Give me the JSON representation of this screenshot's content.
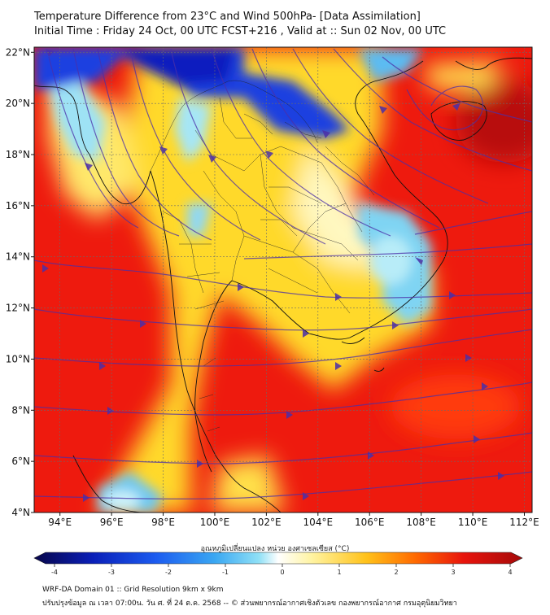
{
  "header": {
    "title_line1": "Temperature Difference from 23°C and Wind 500hPa- [Data Assimilation]",
    "title_line2": "Initial Time : Friday 24 Oct, 00 UTC FCST+216 , Valid at ::  Sun 02 Nov, 00 UTC"
  },
  "map": {
    "lon_ticks": [
      "94°E",
      "96°E",
      "98°E",
      "100°E",
      "102°E",
      "104°E",
      "106°E",
      "108°E",
      "110°E",
      "112°E"
    ],
    "lat_ticks": [
      "4°N",
      "6°N",
      "8°N",
      "10°N",
      "12°N",
      "14°N",
      "16°N",
      "18°N",
      "20°N",
      "22°N"
    ],
    "lon_values": [
      94,
      96,
      98,
      100,
      102,
      104,
      106,
      108,
      110,
      112
    ],
    "lat_values": [
      4,
      6,
      8,
      10,
      12,
      14,
      16,
      18,
      20,
      22
    ],
    "lon_range": [
      93,
      112.3
    ],
    "lat_range": [
      4,
      22.2
    ],
    "streamline_color": "#4b2fa8"
  },
  "colorbar": {
    "label": "อุณหภูมิเปลี่ยนแปลง หน่วย องศาเซลเซียส (°C)",
    "tick_labels": [
      "-4",
      "-3",
      "-2",
      "-1",
      "0",
      "1",
      "2",
      "3",
      "4"
    ],
    "tick_values": [
      -4,
      -3,
      -2,
      -1,
      0,
      1,
      2,
      3,
      4
    ],
    "range": [
      -4,
      4
    ],
    "colors": [
      "#08064a",
      "#0a1fb8",
      "#1c5cf0",
      "#3aa7f2",
      "#8fe0f6",
      "#ffffff",
      "#fff3a0",
      "#ffc21a",
      "#ff6a00",
      "#e8140c",
      "#a50a0a"
    ]
  },
  "footer": {
    "line1": "WRF-DA Domain 01 :: Grid Resolution 9km x 9km",
    "line2": "ปรับปรุงข้อมูล ณ เวลา 07:00น. วัน ศ. ที่ 24 ต.ค. 2568 -- © ส่วนพยากรณ์อากาศเชิงตัวเลข กองพยากรณ์อากาศ กรมอุตุนิยมวิทยา"
  }
}
